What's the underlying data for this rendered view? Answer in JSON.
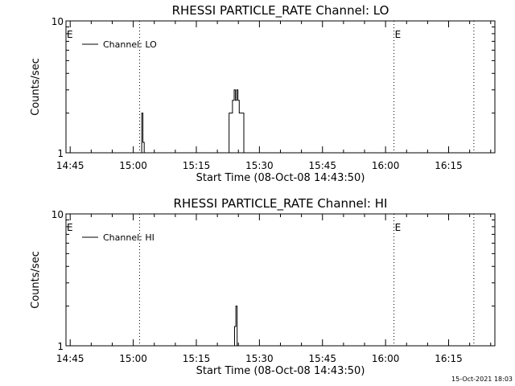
{
  "footer_timestamp": "15-Oct-2021 18:03",
  "chart_data": [
    {
      "type": "line",
      "title": "RHESSI PARTICLE_RATE Channel: LO",
      "xlabel": "Start Time (08-Oct-08 14:43:50)",
      "ylabel": "Counts/sec",
      "yscale": "log",
      "ylim": [
        1,
        10
      ],
      "y_ticks": [
        "1",
        "10"
      ],
      "xlim": [
        "14:44",
        "16:26"
      ],
      "x_ticks": [
        "14:45",
        "15:00",
        "15:15",
        "15:30",
        "15:45",
        "16:00",
        "16:15"
      ],
      "event_lines": [
        {
          "time": "15:01.5",
          "label": "",
          "style": "dotted"
        },
        {
          "time": "16:02",
          "label": "E",
          "style": "dotted"
        },
        {
          "time": "16:21",
          "label": "",
          "style": "dotted"
        }
      ],
      "corner_markers": [
        {
          "label": "E",
          "time": "14:44"
        }
      ],
      "legend": {
        "entries": [
          "Channel: LO"
        ],
        "position": "top-left"
      },
      "series": [
        {
          "name": "Channel: LO",
          "color": "#000000",
          "points": [
            [
              "15:02.0",
              1
            ],
            [
              "15:02.0",
              2
            ],
            [
              "15:02.3",
              2
            ],
            [
              "15:02.3",
              1.2
            ],
            [
              "15:02.6",
              1.2
            ],
            [
              "15:02.6",
              1
            ],
            [
              "15:22.8",
              1
            ],
            [
              "15:22.8",
              2
            ],
            [
              "15:23.6",
              2
            ],
            [
              "15:23.6",
              2.5
            ],
            [
              "15:24.0",
              2.5
            ],
            [
              "15:24.0",
              3
            ],
            [
              "15:24.3",
              3
            ],
            [
              "15:24.3",
              2.5
            ],
            [
              "15:24.6",
              2.5
            ],
            [
              "15:24.6",
              3
            ],
            [
              "15:24.9",
              3
            ],
            [
              "15:24.9",
              2.5
            ],
            [
              "15:25.2",
              2.5
            ],
            [
              "15:25.2",
              2
            ],
            [
              "15:26.3",
              2
            ],
            [
              "15:26.3",
              1
            ]
          ]
        }
      ]
    },
    {
      "type": "line",
      "title": "RHESSI PARTICLE_RATE Channel: HI",
      "xlabel": "Start Time (08-Oct-08 14:43:50)",
      "ylabel": "Counts/sec",
      "yscale": "log",
      "ylim": [
        1,
        10
      ],
      "y_ticks": [
        "1",
        "10"
      ],
      "xlim": [
        "14:44",
        "16:26"
      ],
      "x_ticks": [
        "14:45",
        "15:00",
        "15:15",
        "15:30",
        "15:45",
        "16:00",
        "16:15"
      ],
      "event_lines": [
        {
          "time": "15:01.5",
          "label": "",
          "style": "dotted"
        },
        {
          "time": "16:02",
          "label": "E",
          "style": "dotted"
        },
        {
          "time": "16:21",
          "label": "",
          "style": "dotted"
        }
      ],
      "corner_markers": [
        {
          "label": "E",
          "time": "14:44"
        }
      ],
      "legend": {
        "entries": [
          "Channel: HI"
        ],
        "position": "top-left"
      },
      "series": [
        {
          "name": "Channel: HI",
          "color": "#000000",
          "points": [
            [
              "15:24.1",
              1
            ],
            [
              "15:24.1",
              1.4
            ],
            [
              "15:24.4",
              1.4
            ],
            [
              "15:24.4",
              2
            ],
            [
              "15:24.7",
              2
            ],
            [
              "15:24.7",
              1
            ]
          ]
        }
      ]
    }
  ]
}
